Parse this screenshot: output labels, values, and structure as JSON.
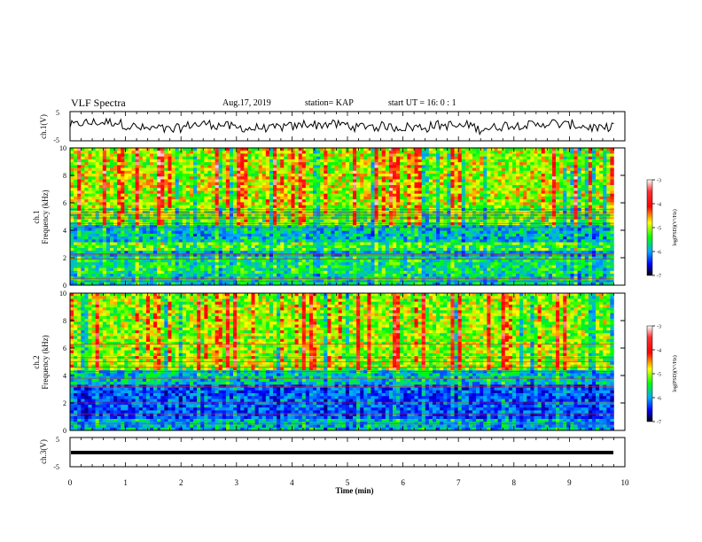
{
  "header": {
    "title": "VLF Spectra",
    "date": "Aug.17, 2019",
    "station": "station= KAP",
    "start": "start  UT =   16: 0  : 1"
  },
  "colorbar": {
    "label": "log(PSD)(V²/Hz)",
    "ticks": [
      "-3",
      "-4",
      "-5",
      "-6",
      "-7"
    ],
    "colors": [
      "#ffffff",
      "#ff0000",
      "#ffff00",
      "#00ff00",
      "#00aaff",
      "#0000ff",
      "#000000"
    ]
  },
  "chart_data": [
    {
      "type": "line",
      "panel": "ch1-waveform",
      "ylabel": "ch.1(V)",
      "ylim": [
        -5,
        5
      ],
      "ytick_labels": [
        "5",
        "-5"
      ],
      "x_range": [
        0,
        10
      ],
      "description_values": "noisy waveform centred near 0 V with ~±3 V excursions",
      "color": "#000000"
    },
    {
      "type": "heatmap",
      "panel": "ch1-spectrogram",
      "ylabel_line1": "ch.1",
      "ylabel_line2": "Frequency  (kHz)",
      "ylim": [
        0,
        10
      ],
      "ytick_labels": [
        "0",
        "2",
        "4",
        "6",
        "8",
        "10"
      ],
      "x_range": [
        0,
        9.8
      ],
      "color_range": [
        -7,
        -3
      ],
      "horizontal_lines_khz": [
        0.3,
        0.5,
        1.9,
        2.2,
        2.3,
        4.2,
        4.5,
        4.9,
        5.1,
        5.3,
        5.5
      ],
      "band_levels": [
        {
          "from": 0,
          "to": 0.8,
          "level": -5.4
        },
        {
          "from": 0.8,
          "to": 2,
          "level": -5.2
        },
        {
          "from": 2,
          "to": 2.6,
          "level": -5.6
        },
        {
          "from": 2.6,
          "to": 3.2,
          "level": -5.0
        },
        {
          "from": 3.2,
          "to": 4.4,
          "level": -5.5
        },
        {
          "from": 4.4,
          "to": 5.6,
          "level": -4.9
        },
        {
          "from": 5.6,
          "to": 10,
          "level": -4.6
        }
      ]
    },
    {
      "type": "heatmap",
      "panel": "ch2-spectrogram",
      "ylabel_line1": "ch.2",
      "ylabel_line2": "Frequency  (kHz)",
      "ylim": [
        0,
        10
      ],
      "ytick_labels": [
        "0",
        "2",
        "4",
        "6",
        "8",
        "10"
      ],
      "x_range": [
        0,
        9.8
      ],
      "color_range": [
        -7,
        -3
      ],
      "horizontal_lines_khz": [
        0.5,
        1.2,
        2.0,
        3.2,
        3.8,
        4.3,
        4.6,
        5.0,
        5.3,
        6.3
      ],
      "band_levels": [
        {
          "from": 0,
          "to": 0.8,
          "level": -5.6
        },
        {
          "from": 0.8,
          "to": 3.4,
          "level": -6.0
        },
        {
          "from": 3.4,
          "to": 4.4,
          "level": -5.5
        },
        {
          "from": 4.4,
          "to": 10,
          "level": -4.7
        }
      ]
    },
    {
      "type": "line",
      "panel": "ch3-waveform",
      "ylabel": "ch.3(V)",
      "ylim": [
        -5,
        5
      ],
      "ytick_labels": [
        "5",
        "-5"
      ],
      "x_range": [
        0,
        9.8
      ],
      "values_constant": 0,
      "color": "#000000"
    }
  ],
  "xaxis": {
    "label": "Time  (min)",
    "ticks": [
      "0",
      "1",
      "2",
      "3",
      "4",
      "5",
      "6",
      "7",
      "8",
      "9",
      "10"
    ],
    "range": [
      0,
      10
    ]
  }
}
